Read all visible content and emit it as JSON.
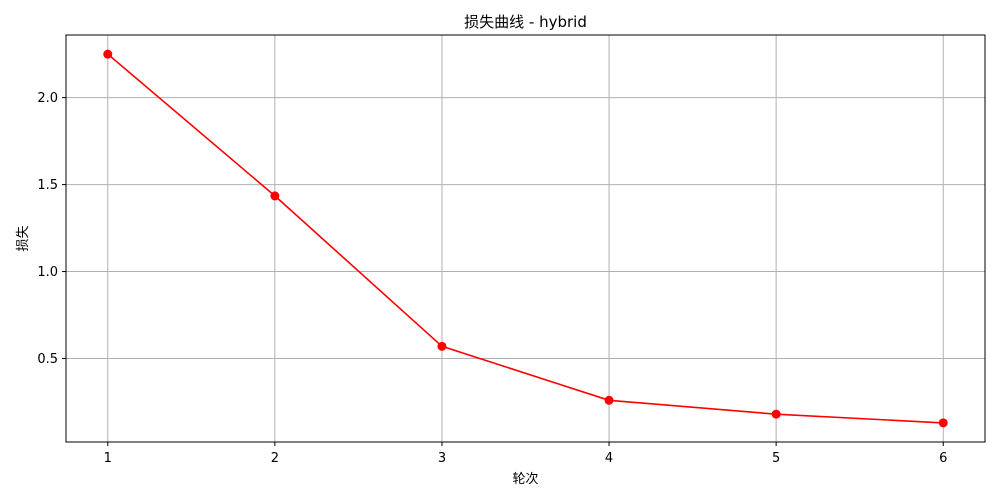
{
  "chart_data": {
    "type": "line",
    "title": "损失曲线 - hybrid",
    "xlabel": "轮次",
    "ylabel": "损失",
    "x": [
      1,
      2,
      3,
      4,
      5,
      6
    ],
    "xlim": [
      0.75,
      6.25
    ],
    "ylim": [
      0.02,
      2.36
    ],
    "xticks": [
      1,
      2,
      3,
      4,
      5,
      6
    ],
    "yticks": [
      0.5,
      1.0,
      1.5,
      2.0
    ],
    "ytick_labels": [
      "0.5",
      "1.0",
      "1.5",
      "2.0"
    ],
    "grid": true,
    "series": [
      {
        "values": [
          2.25,
          1.435,
          0.57,
          0.26,
          0.18,
          0.13
        ],
        "color": "#ff0000",
        "marker": "circle"
      }
    ]
  }
}
